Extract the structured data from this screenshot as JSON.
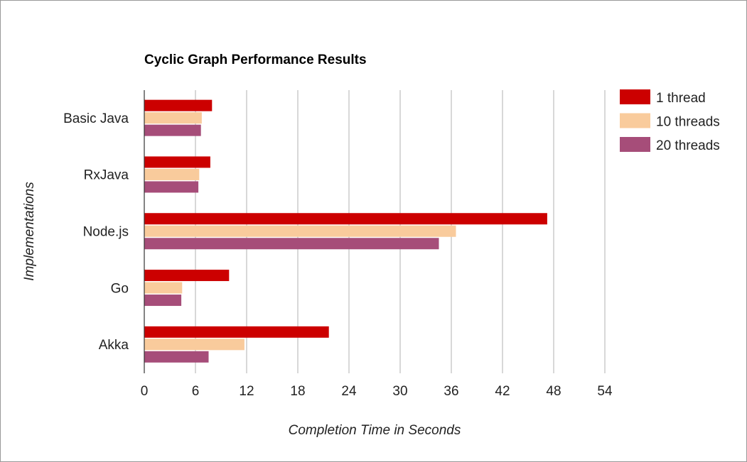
{
  "chart_data": {
    "type": "bar",
    "orientation": "horizontal",
    "title": "Cyclic Graph Performance Results",
    "xlabel": "Completion Time in Seconds",
    "ylabel": "Implementations",
    "categories": [
      "Basic Java",
      "RxJava",
      "Node.js",
      "Go",
      "Akka"
    ],
    "series": [
      {
        "name": "1 thread",
        "color": "#cc0000",
        "values": [
          7.9,
          7.7,
          47.2,
          9.9,
          21.6
        ]
      },
      {
        "name": "10 threads",
        "color": "#f9cb9c",
        "values": [
          6.7,
          6.4,
          36.5,
          4.4,
          11.7
        ]
      },
      {
        "name": "20 threads",
        "color": "#a64d79",
        "values": [
          6.6,
          6.3,
          34.5,
          4.3,
          7.5
        ]
      }
    ],
    "xlim": [
      0,
      54
    ],
    "xticks": [
      "0",
      "6",
      "12",
      "18",
      "24",
      "30",
      "36",
      "42",
      "48",
      "54"
    ],
    "grid": true,
    "legend_position": "top-right"
  }
}
